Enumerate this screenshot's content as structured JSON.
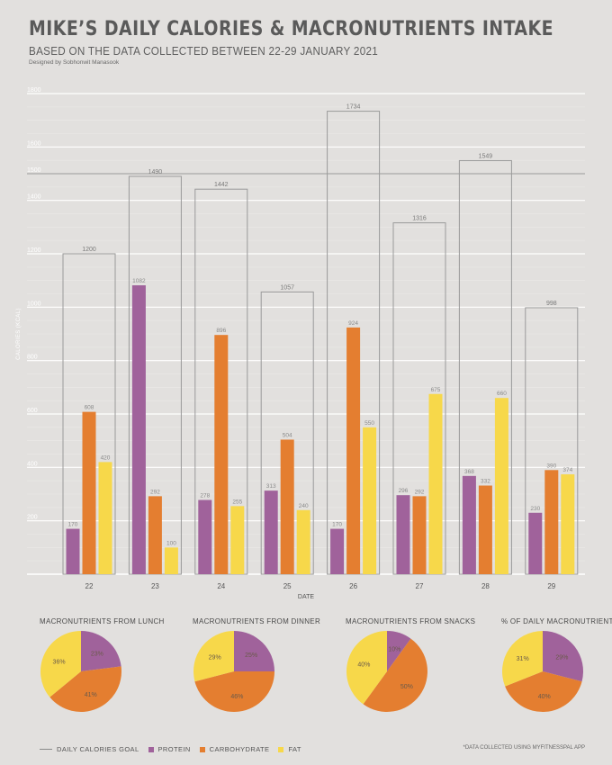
{
  "header": {
    "title": "MIKE’S DAILY CALORIES & MACRONUTRIENTS INTAKE",
    "subtitle": "BASED ON THE DATA COLLECTED BETWEEN 22-29 JANUARY 2021",
    "credit": "Designed by Sobhonwit Manasook"
  },
  "colors": {
    "protein": "#a0629b",
    "carbohydrate": "#e47e30",
    "fat": "#f7d84a",
    "total_outline": "#9a9a9a",
    "grid": "#ffffff",
    "goal_line": "#9a9a9a"
  },
  "chart_data": [
    {
      "type": "bar",
      "ylabel": "CALORIES (KCAL)",
      "xlabel": "DATE",
      "ylim": [
        0,
        1800
      ],
      "y_ticks": [
        200,
        400,
        600,
        800,
        1000,
        1200,
        1400,
        1500,
        1600,
        1800
      ],
      "categories": [
        "22",
        "23",
        "24",
        "25",
        "26",
        "27",
        "28",
        "29"
      ],
      "goal": 1500,
      "grid": true,
      "total": [
        1200,
        1490,
        1442,
        1057,
        1734,
        1316,
        1549,
        998
      ],
      "series": [
        {
          "name": "PROTEIN",
          "values": [
            170,
            1082,
            278,
            313,
            170,
            296,
            368,
            230
          ]
        },
        {
          "name": "CARBOHYDRATE",
          "values": [
            608,
            292,
            896,
            504,
            924,
            292,
            332,
            390
          ]
        },
        {
          "name": "FAT",
          "values": [
            420,
            100,
            255,
            240,
            550,
            675,
            660,
            374
          ]
        }
      ]
    },
    {
      "type": "pie",
      "title": "MACRONUTRIENTS FROM LUNCH",
      "labels": [
        "PROTEIN",
        "CARBOHYDRATE",
        "FAT"
      ],
      "values": [
        23,
        41,
        36
      ]
    },
    {
      "type": "pie",
      "title": "MACRONUTRIENTS FROM DINNER",
      "labels": [
        "PROTEIN",
        "CARBOHYDRATE",
        "FAT"
      ],
      "values": [
        25,
        46,
        29
      ]
    },
    {
      "type": "pie",
      "title": "MACRONUTRIENTS FROM SNACKS",
      "labels": [
        "PROTEIN",
        "CARBOHYDRATE",
        "FAT"
      ],
      "values": [
        10,
        50,
        40
      ]
    },
    {
      "type": "pie",
      "title": "% OF  DAILY MACRONUTRIENTS",
      "labels": [
        "PROTEIN",
        "CARBOHYDRATE",
        "FAT"
      ],
      "values": [
        29,
        40,
        31
      ]
    }
  ],
  "legend": {
    "goal": "DAILY CALORIES GOAL",
    "protein": "PROTEIN",
    "carbohydrate": "CARBOHYDRATE",
    "fat": "FAT"
  },
  "footnote": "*DATA COLLECTED USING MYFITNESSPAL APP"
}
